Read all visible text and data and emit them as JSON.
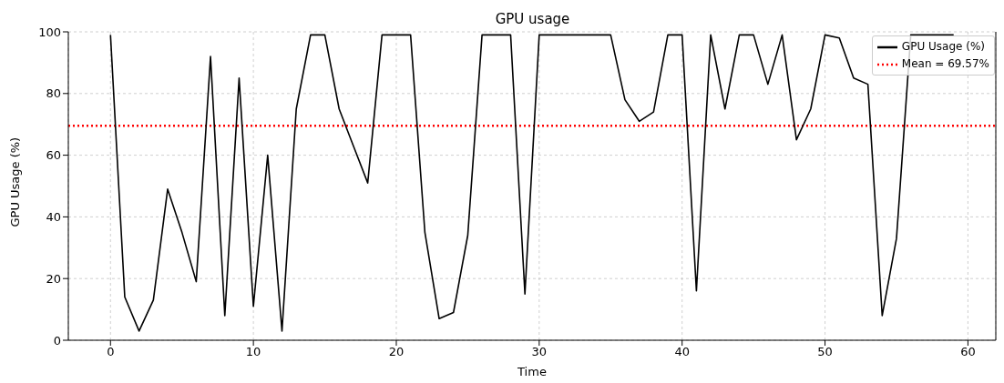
{
  "chart_data": {
    "type": "line",
    "title": "GPU usage",
    "xlabel": "Time",
    "ylabel": "GPU Usage (%)",
    "x": [
      0,
      1,
      2,
      3,
      4,
      5,
      6,
      7,
      8,
      9,
      10,
      11,
      12,
      13,
      14,
      15,
      16,
      17,
      18,
      19,
      20,
      21,
      22,
      23,
      24,
      25,
      26,
      27,
      28,
      29,
      30,
      31,
      32,
      33,
      34,
      35,
      36,
      37,
      38,
      39,
      40,
      41,
      42,
      43,
      44,
      45,
      46,
      47,
      48,
      49,
      50,
      51,
      52,
      53,
      54,
      55,
      56,
      57,
      58,
      59
    ],
    "series": [
      {
        "name": "GPU Usage (%)",
        "color": "#000000",
        "values": [
          99,
          14,
          3,
          13,
          49,
          35,
          19,
          92,
          8,
          85,
          11,
          60,
          3,
          75,
          99,
          99,
          75,
          63,
          51,
          99,
          99,
          99,
          35,
          7,
          9,
          34,
          99,
          99,
          99,
          15,
          99,
          99,
          99,
          99,
          99,
          99,
          78,
          71,
          74,
          99,
          99,
          16,
          99,
          75,
          99,
          99,
          83,
          99,
          65,
          75,
          99,
          98,
          85,
          83,
          8,
          33,
          99,
          99,
          99,
          99
        ]
      }
    ],
    "ref_lines": [
      {
        "axis": "y",
        "value": 69.57,
        "label": "Mean = 69.57%",
        "color": "#ff0000",
        "line_style": "dotted"
      }
    ],
    "xlim": [
      -2.95,
      61.95
    ],
    "xticks": [
      0,
      10,
      20,
      30,
      40,
      50,
      60
    ],
    "ylim": [
      0,
      100
    ],
    "yticks": [
      0,
      20,
      40,
      60,
      80,
      100
    ],
    "grid": true,
    "legend": "top right",
    "marker": "none",
    "line_style": "solid"
  }
}
